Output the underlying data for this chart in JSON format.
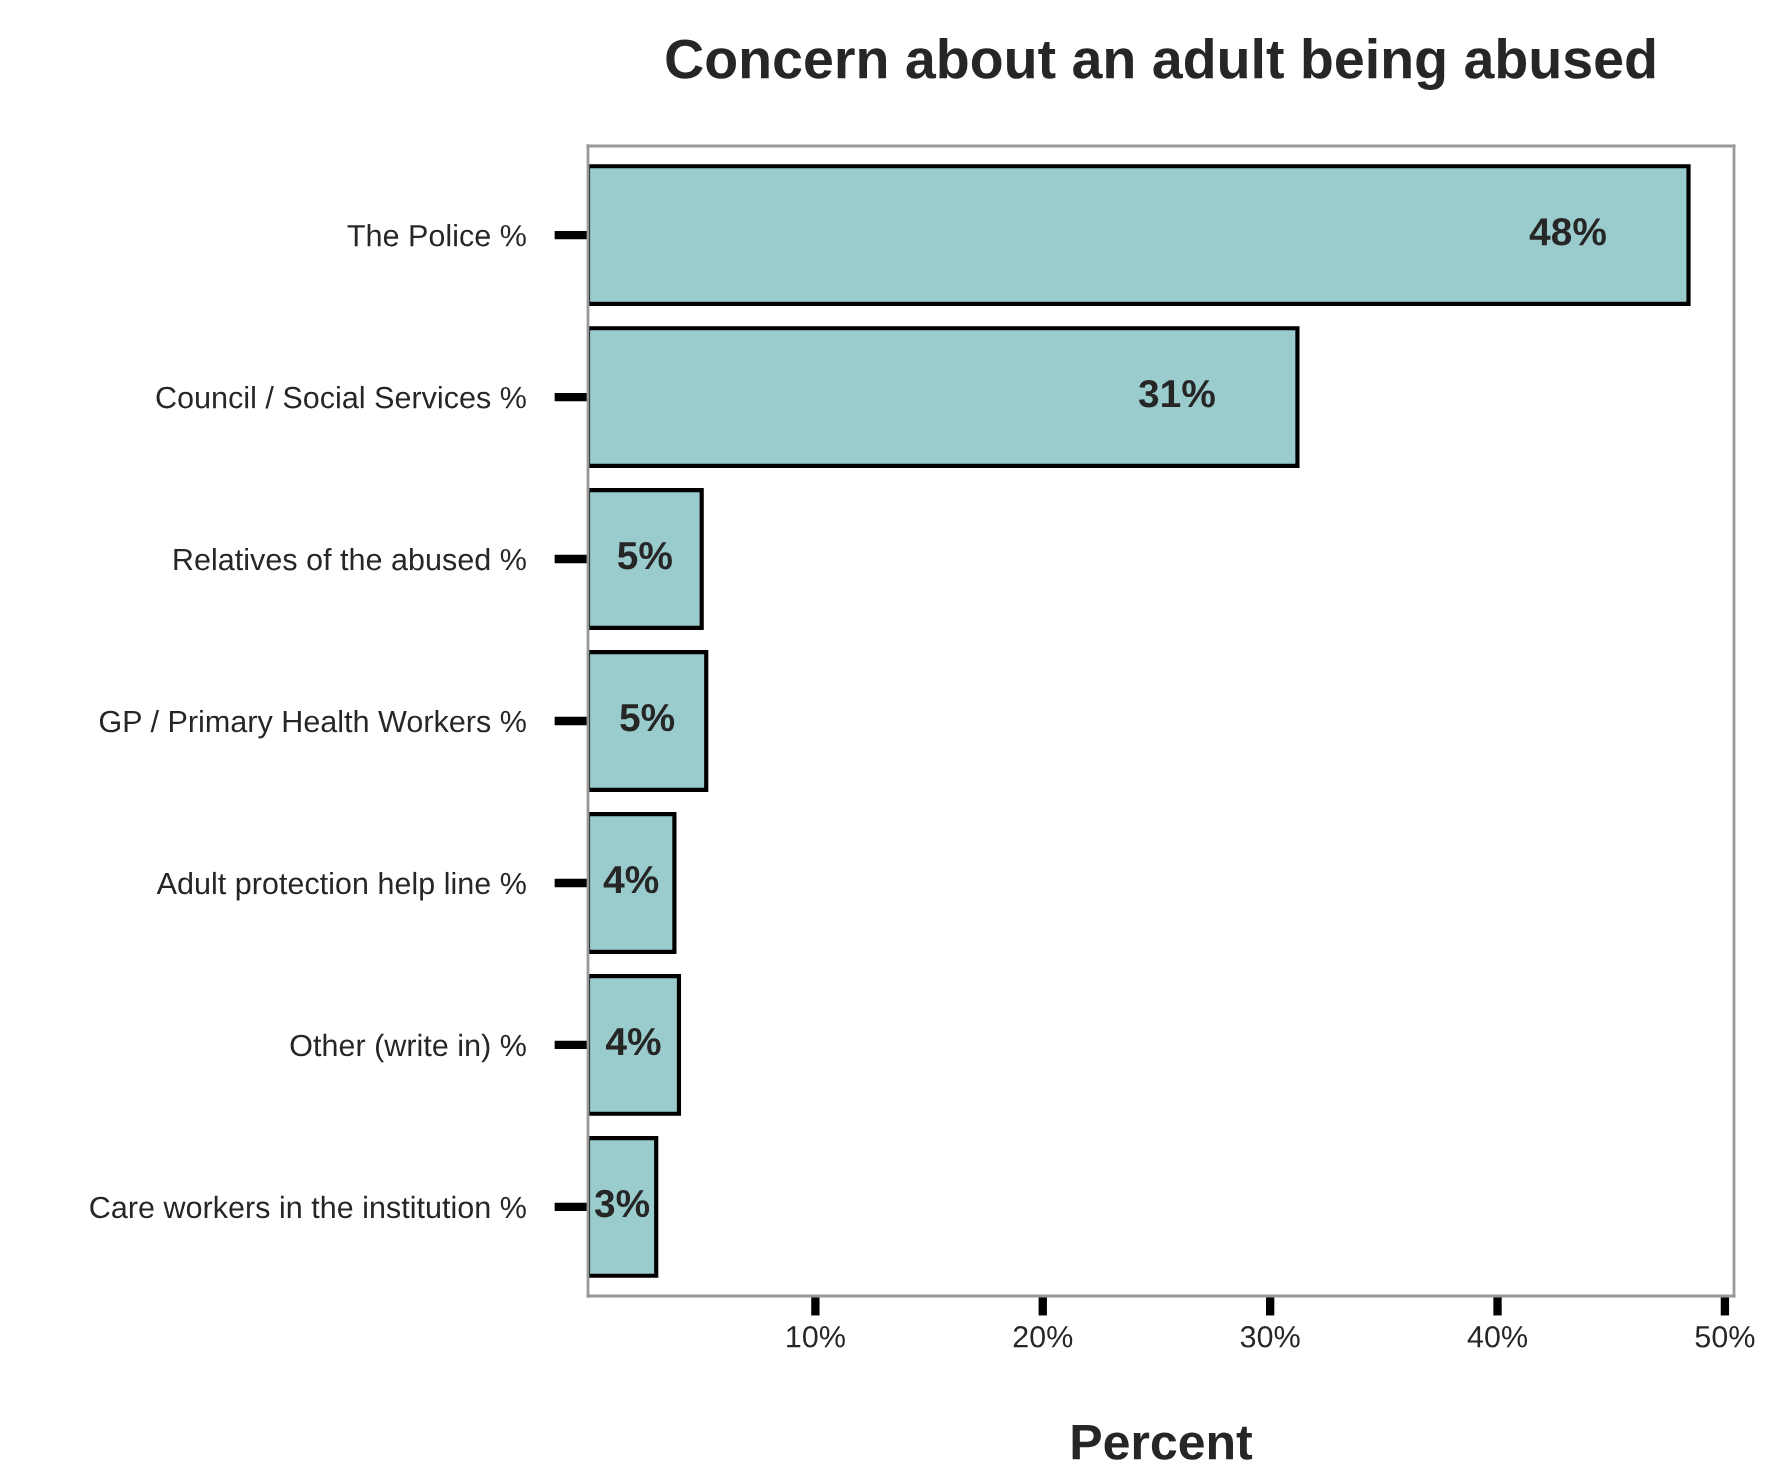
{
  "chart_data": {
    "type": "bar",
    "orientation": "horizontal",
    "title": "Concern about an adult being abused",
    "xlabel": "Percent",
    "categories": [
      "The Police %",
      "Council / Social Services %",
      "Relatives of the abused %",
      "GP / Primary Health Workers %",
      "Adult protection help line %",
      "Other (write in) %",
      "Care workers in the institution %"
    ],
    "values": [
      48.4,
      31.2,
      5.0,
      5.2,
      3.8,
      4.0,
      3.0
    ],
    "value_labels": [
      "48%",
      "31%",
      "5%",
      "5%",
      "4%",
      "4%",
      "3%"
    ],
    "color": "#9acccd",
    "xlim": [
      0,
      50.4
    ],
    "xticks": [
      {
        "value": 10,
        "label": "10%"
      },
      {
        "value": 20,
        "label": "20%"
      },
      {
        "value": 30,
        "label": "30%"
      },
      {
        "value": 40,
        "label": "40%"
      },
      {
        "value": 50,
        "label": "50%"
      }
    ],
    "grid": false
  }
}
